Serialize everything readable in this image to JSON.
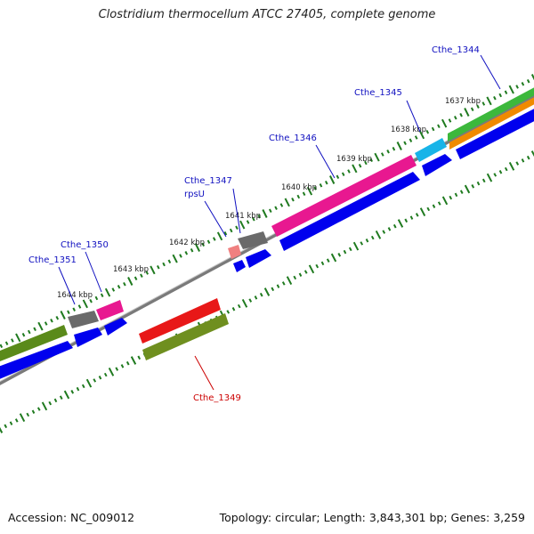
{
  "title": "Clostridium thermocellum ATCC 27405, complete genome",
  "footer": {
    "accession": "Accession: NC_009012",
    "summary": "Topology: circular; Length: 3,843,301 bp; Genes: 3,259"
  },
  "colors": {
    "backbone": "#8a8a8a",
    "ticks": "#1f7a1f",
    "label_forward": "#1010c0",
    "label_reverse": "#cc0000",
    "cds_strand": "#0000ee"
  },
  "ruler_labels": [
    "1637 kbp",
    "1638 kbp",
    "1639 kbp",
    "1640 kbp",
    "1641 kbp",
    "1642 kbp",
    "1643 kbp",
    "1644 kbp"
  ],
  "gene_labels": [
    {
      "id": "cthe-1344",
      "text": "Cthe_1344",
      "strand": "forward"
    },
    {
      "id": "cthe-1345",
      "text": "Cthe_1345",
      "strand": "forward"
    },
    {
      "id": "cthe-1346",
      "text": "Cthe_1346",
      "strand": "forward"
    },
    {
      "id": "cthe-1347",
      "text": "Cthe_1347",
      "strand": "forward"
    },
    {
      "id": "rpsu",
      "text": "rpsU",
      "strand": "forward"
    },
    {
      "id": "cthe-1350",
      "text": "Cthe_1350",
      "strand": "forward"
    },
    {
      "id": "cthe-1351",
      "text": "Cthe_1351",
      "strand": "forward"
    },
    {
      "id": "cthe-1349",
      "text": "Cthe_1349",
      "strand": "reverse"
    }
  ]
}
